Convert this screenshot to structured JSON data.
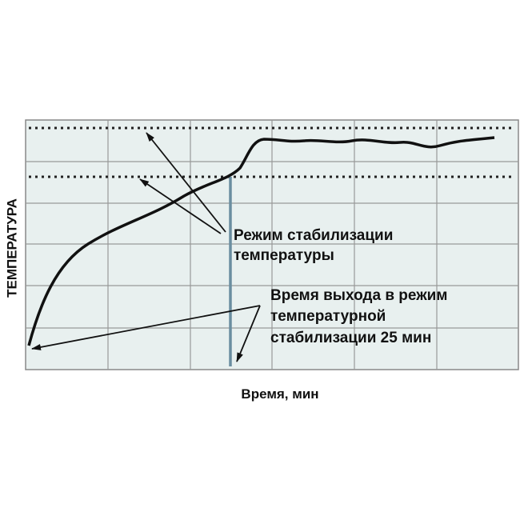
{
  "y_axis_label": "ТЕМПЕРАТУРА",
  "x_axis_label": "Время,  мин",
  "annotations": [
    {
      "lines": [
        "Режим  стабилизации",
        "температуры"
      ]
    },
    {
      "lines": [
        "Время выхода в режим",
        "температурной",
        "стабилизации 25 мин"
      ]
    }
  ]
}
